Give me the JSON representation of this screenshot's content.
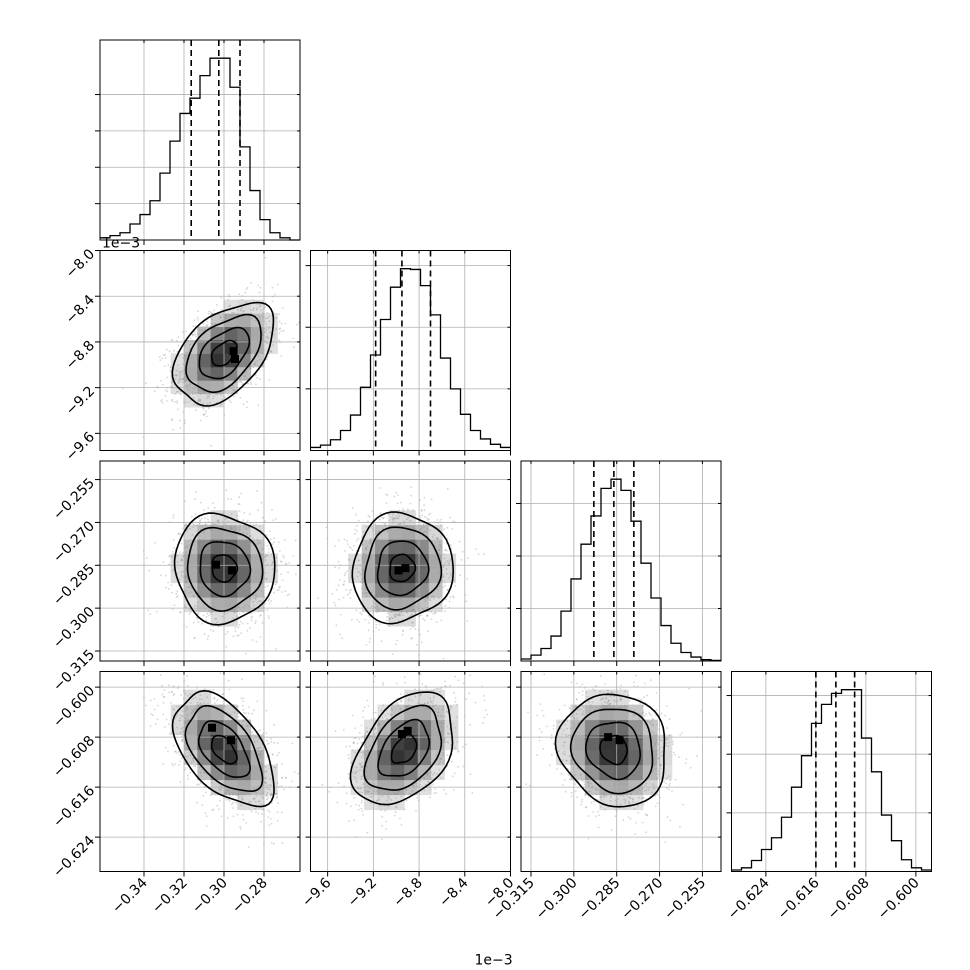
{
  "chart_data": {
    "type": "corner",
    "n_params": 4,
    "parameters": [
      {
        "range": [
          -0.362,
          -0.262
        ],
        "ticks": [
          -0.34,
          -0.32,
          -0.3,
          -0.28
        ],
        "tick_labels": [
          "−0.34",
          "−0.32",
          "−0.30",
          "−0.28"
        ],
        "quantiles": [
          -0.3164,
          -0.3026,
          -0.292
        ],
        "hist_bins": [
          0.3,
          0.6,
          1.0,
          2.2,
          3.5,
          5.4,
          9.2,
          13.6,
          17.4,
          19.5,
          22.6,
          25.0,
          25.0,
          21.0,
          12.8,
          6.8,
          2.8,
          1.0,
          0.3,
          0.0
        ],
        "hist_ticks": [
          5,
          10,
          15,
          20
        ],
        "offset_label": "1e−3"
      },
      {
        "range": [
          -0.00975,
          -0.008
        ],
        "ticks": [
          -0.0096,
          -0.0092,
          -0.0088,
          -0.0084,
          -0.008
        ],
        "tick_labels": [
          "−9.6",
          "−9.2",
          "−8.8",
          "−8.4",
          "−8.0"
        ],
        "quantiles": [
          -0.00918,
          -0.00895,
          -0.0087
        ],
        "hist_bins": [
          0.4,
          0.7,
          1.4,
          2.6,
          4.6,
          8.2,
          12.4,
          17.0,
          21.2,
          23.6,
          23.5,
          21.4,
          17.6,
          12.0,
          8.0,
          4.7,
          2.6,
          1.5,
          0.8,
          0.4
        ],
        "hist_ticks": [
          8,
          16,
          24
        ],
        "offset_label": "1e−3"
      },
      {
        "range": [
          -0.3185,
          -0.2485
        ],
        "ticks": [
          -0.315,
          -0.3,
          -0.285,
          -0.27,
          -0.255
        ],
        "tick_labels": [
          "−0.315",
          "−0.300",
          "−0.285",
          "−0.270",
          "−0.255"
        ],
        "quantiles": [
          -0.293,
          -0.286,
          -0.279
        ],
        "hist_bins": [
          0.3,
          0.9,
          1.9,
          3.8,
          7.6,
          12.5,
          17.8,
          22.1,
          26.3,
          27.7,
          26.0,
          21.3,
          14.9,
          9.6,
          5.4,
          2.7,
          1.3,
          0.6,
          0.2,
          0.1
        ],
        "hist_ticks": [
          8,
          16,
          24
        ]
      },
      {
        "range": [
          -0.6295,
          -0.5975
        ],
        "ticks": [
          -0.624,
          -0.616,
          -0.608,
          -0.6
        ],
        "tick_labels": [
          "−0.624",
          "−0.616",
          "−0.608",
          "−0.600"
        ],
        "quantiles": [
          -0.616,
          -0.6128,
          -0.6098
        ],
        "hist_bins": [
          0.2,
          0.5,
          1.5,
          3.0,
          4.6,
          7.4,
          11.5,
          15.8,
          20.2,
          22.8,
          24.3,
          24.8,
          24.8,
          18.2,
          13.6,
          7.7,
          4.2,
          1.6,
          0.5,
          0.2
        ],
        "hist_ticks": [
          8,
          16,
          24
        ]
      }
    ],
    "pairs": [
      {
        "x": 0,
        "y": 1,
        "mean": [
          -0.3,
          -0.0089
        ],
        "sigma": [
          0.0125,
          0.00022
        ],
        "rho": 0.45,
        "peak": [
          -0.2952,
          -0.00888
        ],
        "peak2": [
          -0.2945,
          -0.00895
        ]
      },
      {
        "x": 0,
        "y": 2,
        "mean": [
          -0.3,
          -0.286
        ],
        "sigma": [
          0.0125,
          0.0095
        ],
        "rho": -0.05,
        "peak": [
          -0.296,
          -0.2868
        ],
        "peak2": [
          -0.304,
          -0.2848
        ]
      },
      {
        "x": 1,
        "y": 2,
        "mean": [
          -0.00895,
          -0.286
        ],
        "sigma": [
          0.00022,
          0.0095
        ],
        "rho": 0.05,
        "peak": [
          -0.00898,
          -0.2868
        ],
        "peak2": [
          -0.00892,
          -0.286
        ]
      },
      {
        "x": 0,
        "y": 3,
        "mean": [
          -0.3,
          -0.61
        ],
        "sigma": [
          0.0125,
          0.0045
        ],
        "rho": -0.5,
        "peak": [
          -0.306,
          -0.6065
        ],
        "peak2": [
          -0.2965,
          -0.6085
        ]
      },
      {
        "x": 1,
        "y": 3,
        "mean": [
          -0.00893,
          -0.61
        ],
        "sigma": [
          0.00022,
          0.0045
        ],
        "rho": 0.4,
        "peak": [
          -0.00895,
          -0.6075
        ],
        "peak2": [
          -0.0089,
          -0.607
        ]
      },
      {
        "x": 2,
        "y": 3,
        "mean": [
          -0.286,
          -0.61
        ],
        "sigma": [
          0.0095,
          0.0045
        ],
        "rho": -0.1,
        "peak": [
          -0.288,
          -0.608
        ],
        "peak2": [
          -0.284,
          -0.6085
        ]
      }
    ],
    "contour_levels_sigma": [
      0.5,
      1.0,
      1.5,
      2.0
    ],
    "scatter_points_per_panel": 1400,
    "colors": {
      "scatter": "#8a8a8a",
      "density_max": "#222222",
      "grid": "#b0b0b0",
      "line": "#000000"
    },
    "grid": true
  }
}
